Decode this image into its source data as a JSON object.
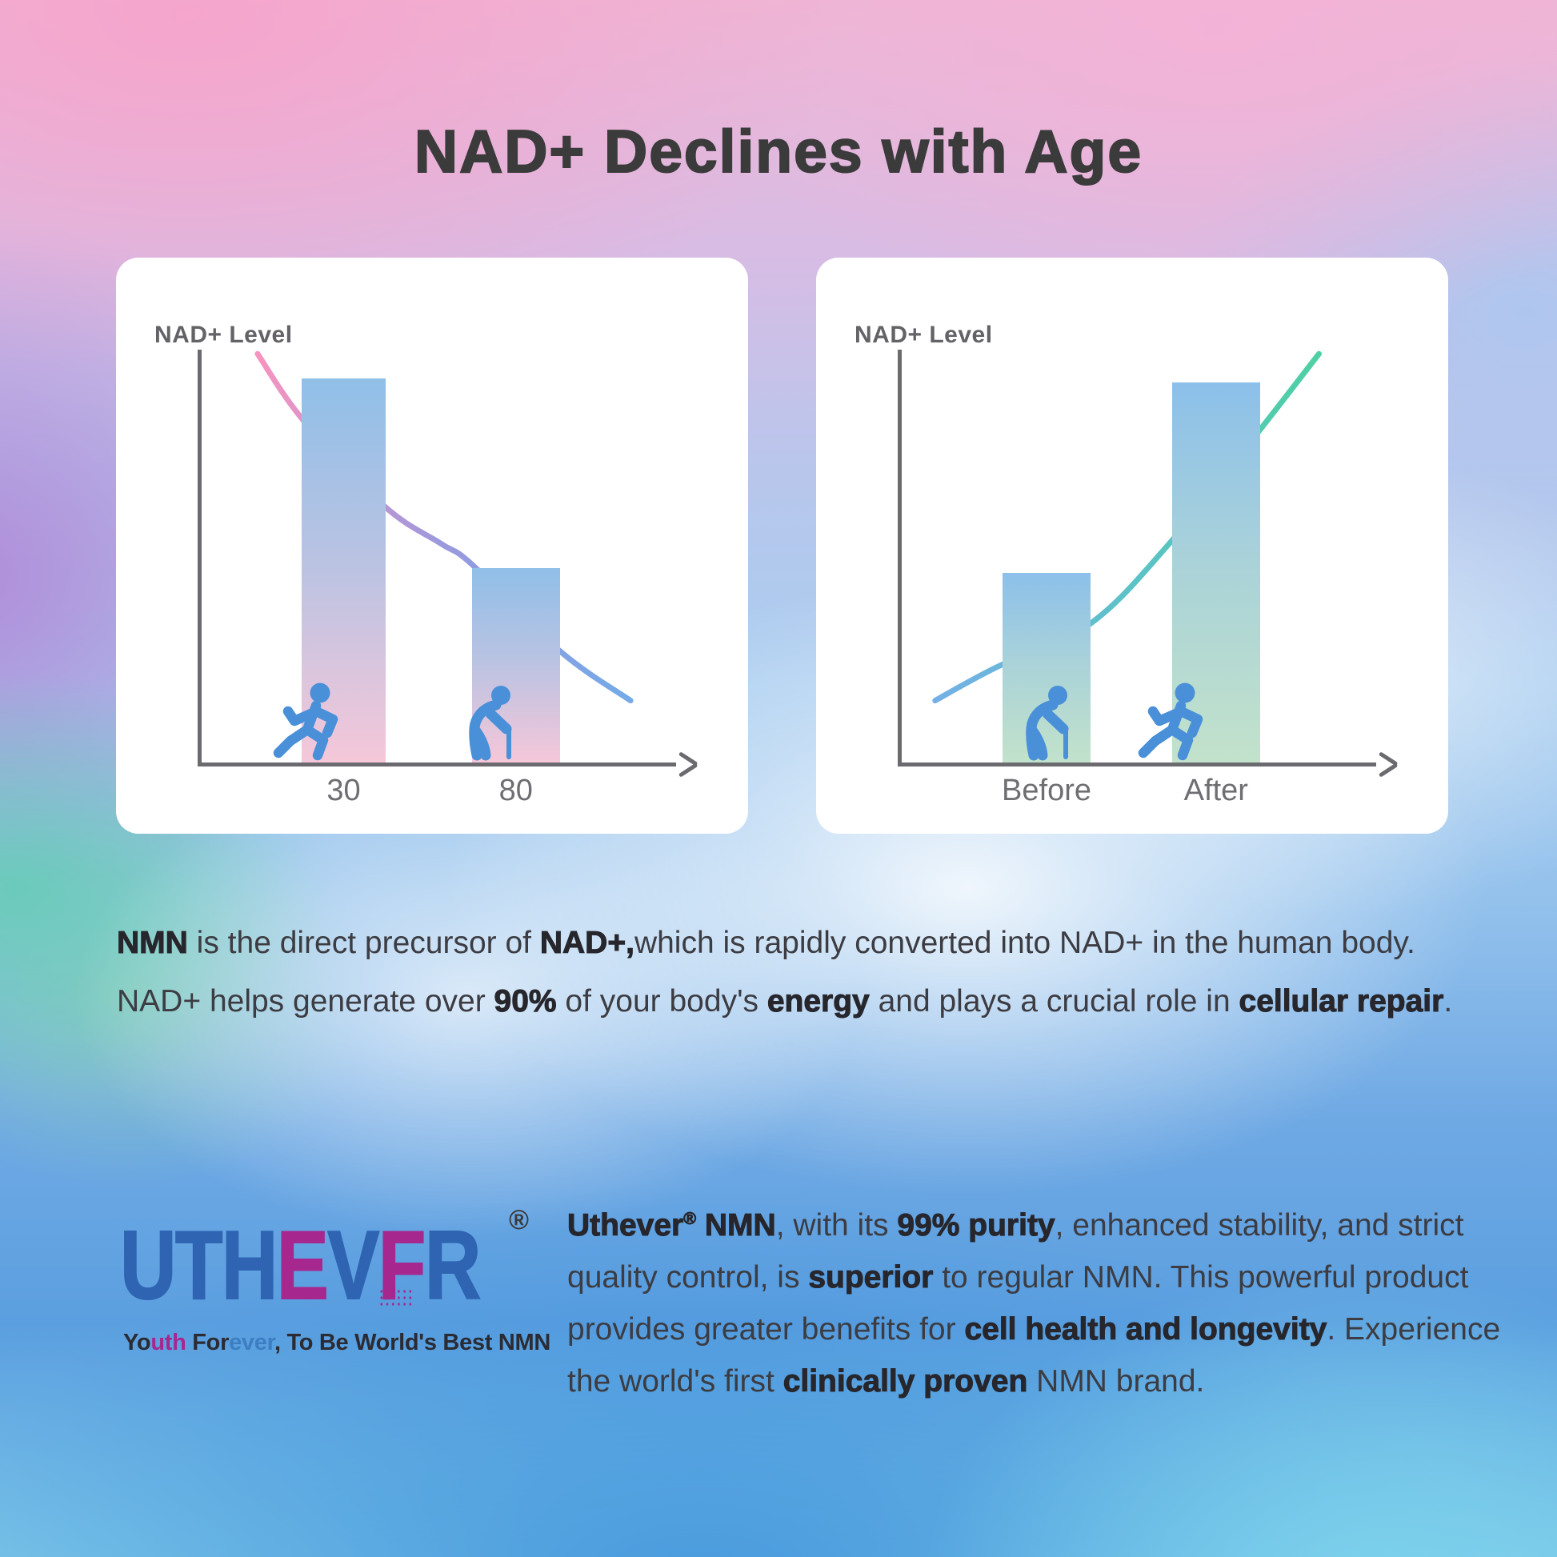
{
  "page": {
    "title": "NAD+ Declines with Age"
  },
  "colors": {
    "title_text": "#3b3b3b",
    "body_text": "#3c3c42",
    "card_bg": "#ffffff",
    "axis": "#6b6b6f",
    "axis_label": "#6f6f73",
    "person_icon": "#4a90d9",
    "logo_blue": "#2e64b2",
    "logo_magenta": "#a6288e",
    "tagline_blue": "#3d7ec2",
    "tagline_dark": "#2b2b33"
  },
  "chart_data": [
    {
      "type": "bar",
      "title": "",
      "categories": [
        "30",
        "80"
      ],
      "values": [
        93,
        47
      ],
      "xlabel": "",
      "ylabel": "NAD+ Level",
      "ylim": [
        0,
        100
      ],
      "grid": false,
      "legend": false,
      "overlay_line": {
        "type": "line",
        "trend": "decreasing",
        "points_pct": [
          [
            12.8,
            99
          ],
          [
            22.5,
            83
          ],
          [
            40,
            62
          ],
          [
            52,
            53
          ],
          [
            58.6,
            48
          ],
          [
            77.4,
            27
          ],
          [
            92.5,
            15
          ]
        ]
      }
    },
    {
      "type": "bar",
      "title": "",
      "categories": [
        "Before",
        "After"
      ],
      "values": [
        46,
        92
      ],
      "xlabel": "",
      "ylabel": "NAD+ Level",
      "ylim": [
        0,
        100
      ],
      "grid": false,
      "legend": false,
      "overlay_line": {
        "type": "line",
        "trend": "increasing",
        "points_pct": [
          [
            8,
            15
          ],
          [
            21,
            23
          ],
          [
            41,
            33.5
          ],
          [
            58,
            53
          ],
          [
            77,
            80
          ],
          [
            90,
            99
          ]
        ]
      }
    }
  ],
  "charts_render": [
    {
      "curve_stops": [
        "#f793bf",
        "#9a99de",
        "#74aae8"
      ],
      "bar_stops": [
        "#90bfe8",
        "#bcc3e2",
        "#f5c7d9"
      ],
      "bars": [
        {
          "x": 0.222,
          "w": 0.18
        },
        {
          "x": 0.586,
          "w": 0.188
        }
      ],
      "icons": [
        {
          "type": "runner",
          "x": 0.149
        },
        {
          "type": "elder",
          "x": 0.54
        }
      ]
    },
    {
      "curve_stops": [
        "#74b0e6",
        "#5cc2c8",
        "#4fd0a4"
      ],
      "bar_stops": [
        "#8cc0ea",
        "#abd3d8",
        "#c2e2cb"
      ],
      "bars": [
        {
          "x": 0.224,
          "w": 0.188
        },
        {
          "x": 0.586,
          "w": 0.188
        }
      ],
      "icons": [
        {
          "type": "elder",
          "x": 0.235
        },
        {
          "type": "runner",
          "x": 0.5
        }
      ]
    }
  ],
  "paragraph1": {
    "runs": [
      {
        "t": "NMN",
        "b": true
      },
      {
        "t": " is the direct precursor of "
      },
      {
        "t": "NAD+,",
        "b": true
      },
      {
        "t": "which is rapidly converted into NAD+ in the human body. NAD+ helps generate over "
      },
      {
        "t": "90%",
        "b": true
      },
      {
        "t": " of your body's "
      },
      {
        "t": "energy",
        "b": true
      },
      {
        "t": " and plays a crucial role in "
      },
      {
        "t": "cellular repair",
        "b": true
      },
      {
        "t": "."
      }
    ]
  },
  "paragraph2": {
    "runs": [
      {
        "t": "Uthever",
        "b": true
      },
      {
        "t": "®",
        "b": true,
        "sup": true
      },
      {
        "t": " NMN",
        "b": true
      },
      {
        "t": ", with its "
      },
      {
        "t": "99% purity",
        "b": true
      },
      {
        "t": ", enhanced stability, and strict quality control, is "
      },
      {
        "t": "superior",
        "b": true
      },
      {
        "t": " to regular NMN. This powerful product provides greater benefits for "
      },
      {
        "t": "cell health and longevity",
        "b": true
      },
      {
        "t": ". Experience the world's first "
      },
      {
        "t": "clinically proven",
        "b": true
      },
      {
        "t": " NMN brand."
      }
    ]
  },
  "logo": {
    "letters": [
      {
        "ch": "U",
        "color": "#2e64b2"
      },
      {
        "ch": "T",
        "color": "#2e64b2"
      },
      {
        "ch": "H",
        "color": "#2e64b2"
      },
      {
        "ch": "E",
        "color": "#a6288e"
      },
      {
        "ch": "V",
        "color": "#2e64b2"
      },
      {
        "ch": "E",
        "color": "#a6288e",
        "disintegrated": true
      },
      {
        "ch": "R",
        "color": "#2e64b2"
      }
    ],
    "registered_mark": "®",
    "tagline_runs": [
      {
        "t": "Yo",
        "c": "#2b2b33"
      },
      {
        "t": "uth",
        "c": "#a6288e"
      },
      {
        "t": " For",
        "c": "#2b2b33"
      },
      {
        "t": "ever",
        "c": "#3d7ec2"
      },
      {
        "t": ", To Be World's Best NMN",
        "c": "#2b2b33"
      }
    ]
  }
}
